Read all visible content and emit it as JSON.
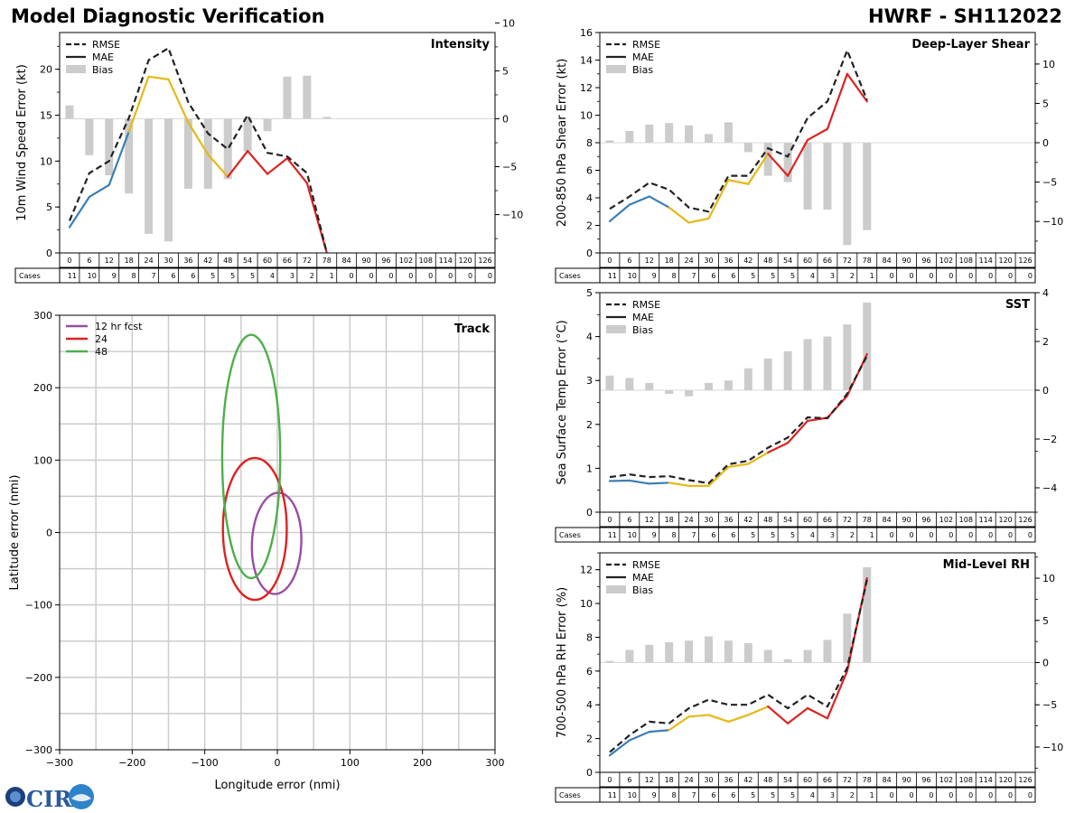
{
  "header": {
    "title": "Model Diagnostic Verification",
    "model_id": "HWRF - SH112022"
  },
  "colors": {
    "rmse": "#222222",
    "bias": "#cccccc",
    "seg_blue": "#3a7fb5",
    "seg_yellow": "#e6b817",
    "seg_red": "#dd2222",
    "track_12": "#984ea3",
    "track_24": "#dd2222",
    "track_48": "#4daf4a",
    "grid": "#cccccc"
  },
  "legend": {
    "rmse": "RMSE",
    "mae": "MAE",
    "bias": "Bias"
  },
  "table": {
    "hours": [
      "0",
      "6",
      "12",
      "18",
      "24",
      "30",
      "36",
      "42",
      "48",
      "54",
      "60",
      "66",
      "72",
      "78",
      "84",
      "90",
      "96",
      "102",
      "108",
      "114",
      "120",
      "126"
    ],
    "cases_label": "Cases",
    "cases": [
      "11",
      "10",
      "9",
      "8",
      "7",
      "6",
      "6",
      "5",
      "5",
      "5",
      "4",
      "3",
      "2",
      "1",
      "0",
      "0",
      "0",
      "0",
      "0",
      "0",
      "0",
      "0"
    ]
  },
  "logo": {
    "text": "CIRA"
  },
  "chart_data": [
    {
      "id": "intensity",
      "type": "line",
      "title": "Intensity",
      "ylabel": "10m Wind Speed Error (kt)",
      "ylim": [
        0,
        24
      ],
      "yticks": [
        0,
        5,
        10,
        15,
        20
      ],
      "y2lim": [
        -14,
        9
      ],
      "y2ticks": [
        -10,
        -5,
        0,
        5,
        10
      ],
      "rmse": [
        3.5,
        8.7,
        10.0,
        14.7,
        21.0,
        22.3,
        16.4,
        13.0,
        11.3,
        15.0,
        10.9,
        10.5,
        8.7,
        0
      ],
      "mae": [
        2.8,
        6.1,
        7.4,
        13.2,
        19.2,
        18.9,
        14.2,
        10.7,
        8.3,
        11.1,
        8.6,
        10.3,
        7.6,
        0
      ],
      "bias": [
        1.4,
        -3.8,
        -5.9,
        -7.8,
        -12.0,
        -12.8,
        -7.3,
        -7.3,
        -6.3,
        -3.4,
        -1.3,
        4.4,
        4.5,
        0.2
      ]
    },
    {
      "id": "shear",
      "type": "line",
      "title": "Deep-Layer Shear",
      "ylabel": "200-850 hPa Shear Error (kt)",
      "ylim": [
        0,
        16
      ],
      "yticks": [
        0,
        2,
        4,
        6,
        8,
        10,
        12,
        14,
        16
      ],
      "y2lim": [
        -14,
        14
      ],
      "y2ticks": [
        -10,
        -5,
        0,
        5,
        10
      ],
      "rmse": [
        3.2,
        4.1,
        5.1,
        4.6,
        3.3,
        3.0,
        5.6,
        5.6,
        7.6,
        7.0,
        9.8,
        11.0,
        14.7,
        11.1
      ],
      "mae": [
        2.3,
        3.5,
        4.1,
        3.3,
        2.2,
        2.5,
        5.3,
        5.0,
        7.2,
        5.6,
        8.2,
        9.0,
        13.0,
        11.0
      ],
      "bias": [
        0.3,
        1.5,
        2.3,
        2.5,
        2.2,
        1.1,
        2.6,
        -1.2,
        -4.2,
        -5.0,
        -8.5,
        -8.5,
        -13.0,
        -11.1
      ]
    },
    {
      "id": "sst",
      "type": "line",
      "title": "SST",
      "ylabel": "Sea Surface Temp Error (°C)",
      "ylim": [
        0,
        5
      ],
      "yticks": [
        0,
        1,
        2,
        3,
        4,
        5
      ],
      "y2lim": [
        -5,
        4
      ],
      "y2ticks": [
        -4,
        -2,
        0,
        2,
        4
      ],
      "rmse": [
        0.8,
        0.86,
        0.8,
        0.82,
        0.73,
        0.66,
        1.09,
        1.17,
        1.47,
        1.7,
        2.16,
        2.14,
        2.7,
        3.56
      ],
      "mae": [
        0.71,
        0.72,
        0.65,
        0.67,
        0.6,
        0.6,
        1.03,
        1.1,
        1.36,
        1.58,
        2.08,
        2.15,
        2.65,
        3.6
      ],
      "bias": [
        0.6,
        0.5,
        0.3,
        -0.15,
        -0.25,
        0.3,
        0.4,
        0.9,
        1.3,
        1.6,
        2.1,
        2.2,
        2.7,
        3.6
      ]
    },
    {
      "id": "rh",
      "type": "line",
      "title": "Mid-Level RH",
      "ylabel": "700-500 hPa RH Error (%)",
      "ylim": [
        0,
        13
      ],
      "yticks": [
        0,
        2,
        4,
        6,
        8,
        10,
        12
      ],
      "y2lim": [
        -13,
        13
      ],
      "y2ticks": [
        -10,
        -5,
        0,
        5,
        10
      ],
      "rmse": [
        1.2,
        2.2,
        3.0,
        2.9,
        3.8,
        4.3,
        4.0,
        4.0,
        4.6,
        3.8,
        4.6,
        3.9,
        6.2,
        11.4
      ],
      "mae": [
        1.0,
        1.9,
        2.4,
        2.5,
        3.3,
        3.4,
        3.0,
        3.4,
        3.9,
        2.9,
        3.8,
        3.2,
        6.0,
        11.5
      ],
      "bias": [
        0.2,
        1.5,
        2.1,
        2.4,
        2.6,
        3.1,
        2.6,
        2.3,
        1.5,
        0.4,
        1.5,
        2.7,
        5.8,
        11.3
      ]
    },
    {
      "id": "track",
      "type": "line",
      "title": "Track",
      "xlabel": "Longitude error (nmi)",
      "ylabel": "Latitude error (nmi)",
      "xlim": [
        -300,
        300
      ],
      "ylim": [
        -300,
        300
      ],
      "ticks": [
        -300,
        -200,
        -100,
        0,
        100,
        200,
        300
      ],
      "tick_labels": [
        "−300",
        "−200",
        "−100",
        "0",
        "100",
        "200",
        "300"
      ],
      "ellipses": [
        {
          "name": "12 hr fcst",
          "cx": -1,
          "cy": -15,
          "rx": 34,
          "ry": 70,
          "color_key": "track_12",
          "tilt": 2.5
        },
        {
          "name": "24",
          "cx": -31,
          "cy": 5,
          "rx": 44,
          "ry": 98,
          "color_key": "track_24",
          "tilt": 0
        },
        {
          "name": "48",
          "cx": -36,
          "cy": 105,
          "rx": 40,
          "ry": 168,
          "color_key": "track_48",
          "tilt": 0
        }
      ]
    }
  ]
}
